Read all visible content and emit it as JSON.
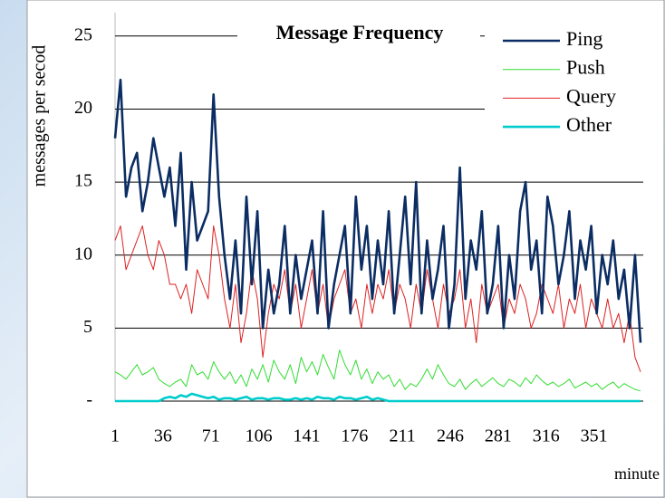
{
  "chart_data": {
    "type": "line",
    "title": "Message Frequency",
    "ylabel": "messages per secod",
    "xlabel": "minute",
    "x": [
      1,
      5,
      9,
      13,
      17,
      21,
      25,
      29,
      33,
      37,
      41,
      45,
      49,
      53,
      57,
      61,
      65,
      69,
      73,
      77,
      81,
      85,
      89,
      93,
      97,
      101,
      105,
      109,
      113,
      117,
      121,
      125,
      129,
      133,
      137,
      141,
      145,
      149,
      153,
      157,
      161,
      165,
      169,
      173,
      177,
      181,
      185,
      189,
      193,
      197,
      201,
      205,
      209,
      213,
      217,
      221,
      225,
      229,
      233,
      237,
      241,
      245,
      249,
      253,
      257,
      261,
      265,
      269,
      273,
      277,
      281,
      285,
      289,
      293,
      297,
      301,
      305,
      309,
      313,
      317,
      321,
      325,
      329,
      333,
      337,
      341,
      345,
      349,
      353,
      357,
      361,
      365,
      369,
      373,
      377,
      381,
      385
    ],
    "xlim": [
      1,
      387
    ],
    "xticks": [
      1,
      36,
      71,
      106,
      141,
      176,
      211,
      246,
      281,
      316,
      351
    ],
    "ylim": [
      0,
      26.6
    ],
    "yticks": [
      {
        "value": 0,
        "label": "-"
      },
      5,
      10,
      15,
      20,
      25
    ],
    "grid": true,
    "legend": "upper right",
    "series": [
      {
        "name": "Ping",
        "color": "#0b2d63",
        "values": [
          18,
          22,
          14,
          16,
          17,
          13,
          15,
          18,
          16,
          14,
          16,
          12,
          17,
          9,
          15,
          11,
          12,
          13,
          21,
          14,
          10,
          7,
          11,
          6,
          14,
          8,
          13,
          5,
          9,
          6,
          8,
          12,
          6,
          10,
          7,
          9,
          11,
          6,
          13,
          5,
          8,
          10,
          12,
          6,
          14,
          9,
          12,
          7,
          11,
          8,
          13,
          6,
          10,
          14,
          8,
          15,
          6,
          11,
          7,
          9,
          12,
          5,
          8,
          16,
          7,
          11,
          9,
          13,
          6,
          8,
          12,
          5,
          10,
          7,
          13,
          15,
          9,
          11,
          6,
          14,
          12,
          8,
          10,
          13,
          7,
          11,
          9,
          12,
          6,
          10,
          8,
          11,
          7,
          9,
          5,
          10,
          4
        ]
      },
      {
        "name": "Push",
        "color": "#33dd33",
        "values": [
          2,
          1.8,
          1.5,
          2,
          2.5,
          1.8,
          2,
          2.3,
          1.5,
          1.2,
          1,
          1.3,
          1.5,
          1,
          2.5,
          1.8,
          2,
          1.5,
          2.7,
          2,
          1.5,
          2,
          1.2,
          1.8,
          1,
          2.2,
          1.5,
          2.5,
          1.3,
          2.8,
          2,
          1.5,
          2.5,
          1.2,
          3,
          2,
          2.7,
          1.8,
          3.2,
          2.3,
          1.5,
          3.5,
          2.5,
          1.8,
          2.8,
          1.5,
          2.2,
          1.2,
          2,
          1.5,
          1.8,
          1,
          1.5,
          0.8,
          1.2,
          1,
          1.5,
          2.2,
          1.5,
          2.5,
          1.8,
          1.2,
          1,
          1.5,
          0.8,
          1.2,
          1.5,
          1,
          1.3,
          1.6,
          1.2,
          1,
          1.5,
          1.3,
          1,
          1.6,
          1.2,
          1.8,
          1.4,
          1.1,
          1.3,
          1,
          1.2,
          1.5,
          0.9,
          1.1,
          1.3,
          1,
          1.2,
          0.8,
          1.1,
          1.3,
          0.9,
          1.2,
          1,
          0.8,
          0.7
        ]
      },
      {
        "name": "Query",
        "color": "#dd2222",
        "values": [
          11,
          12,
          9,
          10,
          11,
          12,
          10,
          9,
          11,
          10,
          8,
          8,
          7,
          8,
          6,
          9,
          8,
          7,
          12,
          10,
          7,
          5,
          8,
          4,
          6,
          9,
          7,
          3,
          6,
          8,
          7,
          9,
          6,
          8,
          5,
          7,
          9,
          6,
          8,
          5,
          7,
          8,
          9,
          6,
          7,
          5,
          8,
          6,
          8,
          7,
          9,
          6,
          8,
          7,
          5,
          8,
          6,
          9,
          7,
          5,
          8,
          6,
          7,
          9,
          5,
          7,
          4,
          8,
          6,
          7,
          8,
          5,
          7,
          6,
          8,
          7,
          5,
          6,
          8,
          7,
          6,
          8,
          5,
          7,
          6,
          8,
          5,
          7,
          6,
          5,
          7,
          5,
          6,
          4,
          6,
          3,
          2
        ]
      },
      {
        "name": "Other",
        "color": "#00cccc",
        "values": [
          0,
          0,
          0,
          0,
          0,
          0,
          0,
          0,
          0,
          0.2,
          0.3,
          0.2,
          0.4,
          0.3,
          0.5,
          0.4,
          0.3,
          0.2,
          0.3,
          0.1,
          0.2,
          0.2,
          0.1,
          0.2,
          0.3,
          0.1,
          0.2,
          0.2,
          0.1,
          0.2,
          0.2,
          0.1,
          0.1,
          0.2,
          0.1,
          0.2,
          0.1,
          0.3,
          0.2,
          0.2,
          0.1,
          0.3,
          0.2,
          0.2,
          0.1,
          0.2,
          0.3,
          0.1,
          0.2,
          0.1,
          0,
          0,
          0,
          0,
          0,
          0,
          0,
          0,
          0,
          0,
          0,
          0,
          0,
          0,
          0,
          0,
          0,
          0,
          0,
          0,
          0,
          0,
          0,
          0,
          0,
          0,
          0,
          0,
          0,
          0,
          0,
          0,
          0,
          0,
          0,
          0,
          0,
          0,
          0,
          0,
          0,
          0,
          0,
          0,
          0,
          0,
          0
        ]
      }
    ]
  }
}
